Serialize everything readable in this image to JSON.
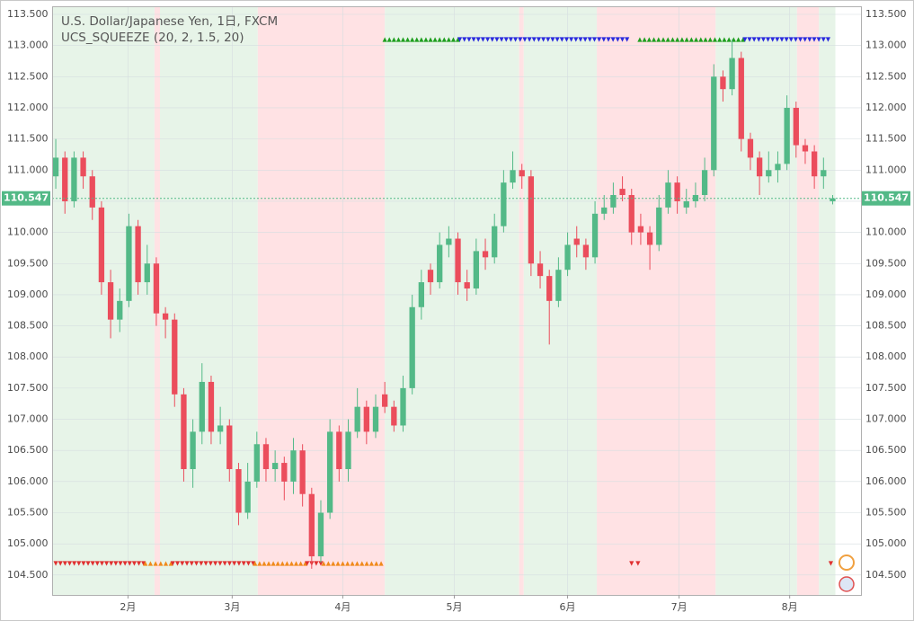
{
  "chart_data": {
    "type": "candlestick",
    "title": "U.S. Dollar/Japanese Yen, 1日, FXCM",
    "subtitle": "UCS_SQUEEZE (20, 2, 1.5, 20)",
    "up_color": "#53b987",
    "down_color": "#eb4d5c",
    "ohlc": [
      [
        110.9,
        111.5,
        110.7,
        111.2
      ],
      [
        111.2,
        111.3,
        110.3,
        110.5
      ],
      [
        110.5,
        111.3,
        110.4,
        111.2
      ],
      [
        111.2,
        111.3,
        110.7,
        110.9
      ],
      [
        110.9,
        111.0,
        110.2,
        110.4
      ],
      [
        110.4,
        110.5,
        109.0,
        109.2
      ],
      [
        109.2,
        109.4,
        108.3,
        108.6
      ],
      [
        108.6,
        109.1,
        108.4,
        108.9
      ],
      [
        108.9,
        110.3,
        108.8,
        110.1
      ],
      [
        110.1,
        110.2,
        109.0,
        109.2
      ],
      [
        109.2,
        109.8,
        109.0,
        109.5
      ],
      [
        109.5,
        109.6,
        108.5,
        108.7
      ],
      [
        108.7,
        108.8,
        108.3,
        108.6
      ],
      [
        108.6,
        108.7,
        107.2,
        107.4
      ],
      [
        107.4,
        107.5,
        106.0,
        106.2
      ],
      [
        106.2,
        107.0,
        105.9,
        106.8
      ],
      [
        106.8,
        107.9,
        106.6,
        107.6
      ],
      [
        107.6,
        107.7,
        106.6,
        106.8
      ],
      [
        106.8,
        107.2,
        106.6,
        106.9
      ],
      [
        106.9,
        107.0,
        106.0,
        106.2
      ],
      [
        106.2,
        106.3,
        105.3,
        105.5
      ],
      [
        105.5,
        106.3,
        105.4,
        106.0
      ],
      [
        106.0,
        106.8,
        105.9,
        106.6
      ],
      [
        106.6,
        106.7,
        106.0,
        106.2
      ],
      [
        106.2,
        106.5,
        106.0,
        106.3
      ],
      [
        106.3,
        106.4,
        105.7,
        106.0
      ],
      [
        106.0,
        106.7,
        105.8,
        106.5
      ],
      [
        106.5,
        106.6,
        105.6,
        105.8
      ],
      [
        105.8,
        105.9,
        104.6,
        104.8
      ],
      [
        104.8,
        105.7,
        104.7,
        105.5
      ],
      [
        105.5,
        107.0,
        105.4,
        106.8
      ],
      [
        106.8,
        106.9,
        106.0,
        106.2
      ],
      [
        106.2,
        107.0,
        106.0,
        106.8
      ],
      [
        106.8,
        107.5,
        106.7,
        107.2
      ],
      [
        107.2,
        107.3,
        106.6,
        106.8
      ],
      [
        106.8,
        107.4,
        106.7,
        107.2
      ],
      [
        107.4,
        107.6,
        107.1,
        107.2
      ],
      [
        107.2,
        107.3,
        106.8,
        106.9
      ],
      [
        106.9,
        107.7,
        106.8,
        107.5
      ],
      [
        107.5,
        109.0,
        107.4,
        108.8
      ],
      [
        108.8,
        109.4,
        108.6,
        109.2
      ],
      [
        109.4,
        109.5,
        109.0,
        109.2
      ],
      [
        109.2,
        110.0,
        109.1,
        109.8
      ],
      [
        109.8,
        110.1,
        109.6,
        109.9
      ],
      [
        109.9,
        110.0,
        109.0,
        109.2
      ],
      [
        109.2,
        109.4,
        108.9,
        109.1
      ],
      [
        109.1,
        109.9,
        109.0,
        109.7
      ],
      [
        109.7,
        109.9,
        109.4,
        109.6
      ],
      [
        109.6,
        110.3,
        109.5,
        110.1
      ],
      [
        110.1,
        111.0,
        110.0,
        110.8
      ],
      [
        110.8,
        111.3,
        110.7,
        111.0
      ],
      [
        111.0,
        111.1,
        110.7,
        110.9
      ],
      [
        110.9,
        111.0,
        109.3,
        109.5
      ],
      [
        109.5,
        109.7,
        109.1,
        109.3
      ],
      [
        109.3,
        109.4,
        108.2,
        108.9
      ],
      [
        108.9,
        109.6,
        108.8,
        109.4
      ],
      [
        109.4,
        110.0,
        109.3,
        109.8
      ],
      [
        109.9,
        110.1,
        109.6,
        109.8
      ],
      [
        109.8,
        109.9,
        109.4,
        109.6
      ],
      [
        109.6,
        110.5,
        109.5,
        110.3
      ],
      [
        110.3,
        110.6,
        110.2,
        110.4
      ],
      [
        110.4,
        110.8,
        110.3,
        110.6
      ],
      [
        110.7,
        110.9,
        110.5,
        110.6
      ],
      [
        110.6,
        110.7,
        109.8,
        110.0
      ],
      [
        110.1,
        110.3,
        109.8,
        110.0
      ],
      [
        110.0,
        110.1,
        109.4,
        109.8
      ],
      [
        109.8,
        110.6,
        109.7,
        110.4
      ],
      [
        110.4,
        111.0,
        110.3,
        110.8
      ],
      [
        110.8,
        110.9,
        110.3,
        110.5
      ],
      [
        110.4,
        110.7,
        110.3,
        110.5
      ],
      [
        110.5,
        110.8,
        110.4,
        110.6
      ],
      [
        110.6,
        111.2,
        110.5,
        111.0
      ],
      [
        111.0,
        112.7,
        110.9,
        112.5
      ],
      [
        112.5,
        112.6,
        112.1,
        112.3
      ],
      [
        112.3,
        113.1,
        112.2,
        112.8
      ],
      [
        112.8,
        112.9,
        111.3,
        111.5
      ],
      [
        111.5,
        111.6,
        111.0,
        111.2
      ],
      [
        111.2,
        111.3,
        110.6,
        110.9
      ],
      [
        110.9,
        111.3,
        110.8,
        111.0
      ],
      [
        111.0,
        111.3,
        110.8,
        111.1
      ],
      [
        111.1,
        112.2,
        111.0,
        112.0
      ],
      [
        112.0,
        112.1,
        111.2,
        111.4
      ],
      [
        111.4,
        111.5,
        111.1,
        111.3
      ],
      [
        111.3,
        111.4,
        110.7,
        110.9
      ],
      [
        110.9,
        111.2,
        110.7,
        111.0
      ],
      [
        110.5,
        110.6,
        110.45,
        110.547
      ]
    ],
    "last_price": {
      "value": 110.547,
      "label": "110.547"
    },
    "xlim": [
      -0.4,
      88.1
    ],
    "ylim": [
      104.18,
      113.63
    ],
    "xticks": [
      {
        "value": 7.9,
        "label": "2月"
      },
      {
        "value": 19.3,
        "label": "3月"
      },
      {
        "value": 31.4,
        "label": "4月"
      },
      {
        "value": 43.6,
        "label": "5月"
      },
      {
        "value": 56.0,
        "label": "6月"
      },
      {
        "value": 68.2,
        "label": "7月"
      },
      {
        "value": 80.3,
        "label": "8月"
      }
    ],
    "yticks": [
      {
        "value": 104.5,
        "label": "104.500"
      },
      {
        "value": 105,
        "label": "105.000"
      },
      {
        "value": 105.5,
        "label": "105.500"
      },
      {
        "value": 106,
        "label": "106.000"
      },
      {
        "value": 106.5,
        "label": "106.500"
      },
      {
        "value": 107,
        "label": "107.000"
      },
      {
        "value": 107.5,
        "label": "107.500"
      },
      {
        "value": 108,
        "label": "108.000"
      },
      {
        "value": 108.5,
        "label": "108.500"
      },
      {
        "value": 109,
        "label": "109.000"
      },
      {
        "value": 109.5,
        "label": "109.500"
      },
      {
        "value": 110,
        "label": "110.000"
      },
      {
        "value": 110.5,
        "label": "110.500"
      },
      {
        "value": 111,
        "label": "111.000"
      },
      {
        "value": 111.5,
        "label": "111.500"
      },
      {
        "value": 112,
        "label": "112.000"
      },
      {
        "value": 112.5,
        "label": "112.500"
      },
      {
        "value": 113,
        "label": "113.000"
      },
      {
        "value": 113.5,
        "label": "113.500"
      }
    ],
    "grid": true,
    "bands": [
      {
        "from": -0.4,
        "to": 10.8,
        "color": "#e7f4e8"
      },
      {
        "from": 10.8,
        "to": 11.4,
        "color": "#ffe2e4"
      },
      {
        "from": 11.4,
        "to": 22.1,
        "color": "#e7f4e8"
      },
      {
        "from": 22.1,
        "to": 36.0,
        "color": "#ffe2e4"
      },
      {
        "from": 36.0,
        "to": 50.7,
        "color": "#e7f4e8"
      },
      {
        "from": 50.7,
        "to": 51.2,
        "color": "#ffe2e4"
      },
      {
        "from": 51.2,
        "to": 59.2,
        "color": "#e7f4e8"
      },
      {
        "from": 59.2,
        "to": 72.2,
        "color": "#ffe2e4"
      },
      {
        "from": 72.2,
        "to": 81.1,
        "color": "#e7f4e8"
      },
      {
        "from": 81.1,
        "to": 83.5,
        "color": "#ffe2e4"
      },
      {
        "from": 83.5,
        "to": 85.3,
        "color": "#e7f4e8"
      }
    ],
    "signals": [
      {
        "row": "top",
        "from": 36.0,
        "to": 44.0,
        "color": "#1e9e1e",
        "dir": "up"
      },
      {
        "row": "top",
        "from": 44.2,
        "to": 62.5,
        "color": "#2b2bdd",
        "dir": "down"
      },
      {
        "row": "top",
        "from": 63.9,
        "to": 75.2,
        "color": "#1e9e1e",
        "dir": "up"
      },
      {
        "row": "top",
        "from": 75.4,
        "to": 84.5,
        "color": "#2b2bdd",
        "dir": "down"
      },
      {
        "row": "bottom",
        "from": 0.0,
        "to": 9.6,
        "color": "#e03030",
        "dir": "down"
      },
      {
        "row": "bottom",
        "from": 9.8,
        "to": 12.6,
        "color": "#f08a1c",
        "dir": "up"
      },
      {
        "row": "bottom",
        "from": 12.8,
        "to": 21.6,
        "color": "#e03030",
        "dir": "down"
      },
      {
        "row": "bottom",
        "from": 21.8,
        "to": 27.3,
        "color": "#f08a1c",
        "dir": "up"
      },
      {
        "row": "bottom",
        "from": 27.5,
        "to": 29.0,
        "color": "#e03030",
        "dir": "down"
      },
      {
        "row": "bottom",
        "from": 29.3,
        "to": 35.6,
        "color": "#f08a1c",
        "dir": "up"
      },
      {
        "row": "bottom",
        "from": 63.0,
        "to": 63.7,
        "color": "#e03030",
        "dir": "down"
      },
      {
        "row": "bottom",
        "from": 84.8,
        "to": 84.8,
        "color": "#e03030",
        "dir": "down"
      }
    ]
  }
}
